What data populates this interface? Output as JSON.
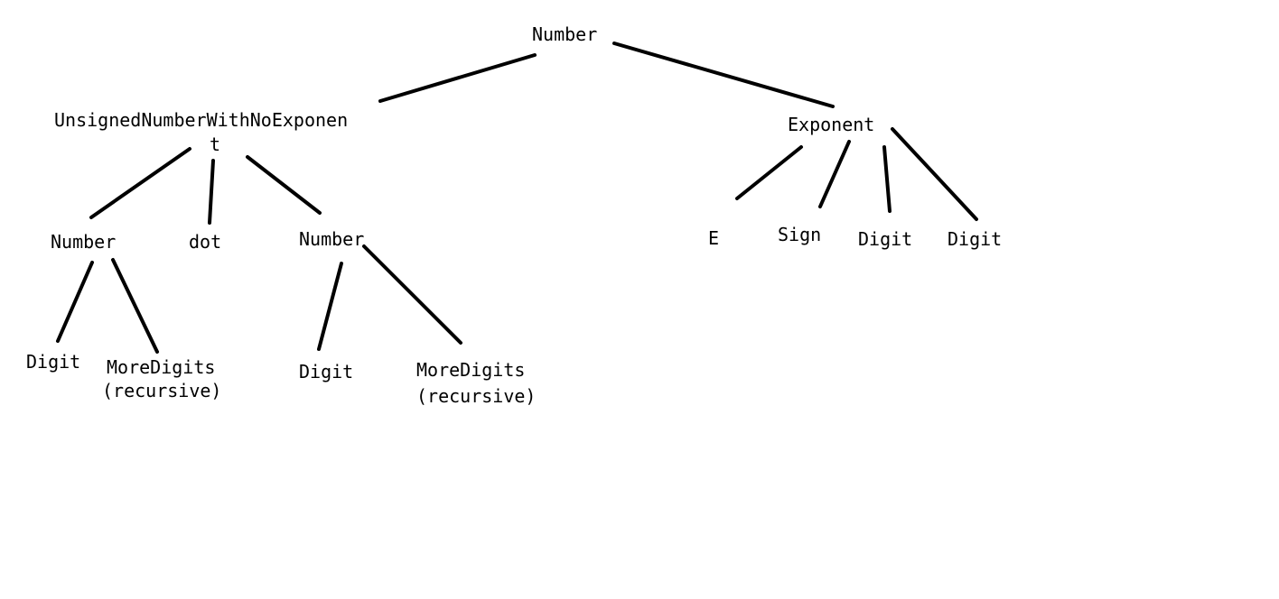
{
  "diagram": {
    "nodes": {
      "root": "Number",
      "unsigned_line1": "UnsignedNumberWithNoExponen",
      "unsigned_line2": "t",
      "exponent": "Exponent",
      "left_number": "Number",
      "dot": "dot",
      "right_number": "Number",
      "left_digit": "Digit",
      "left_moredigits_line1": "MoreDigits",
      "left_moredigits_line2": "(recursive)",
      "right_digit": "Digit",
      "right_moredigits_line1": "MoreDigits",
      "right_moredigits_line2": "(recursive)",
      "e": "E",
      "sign": "Sign",
      "exp_digit_1": "Digit",
      "exp_digit_2": "Digit"
    },
    "colors": {
      "text": "#000000",
      "edge": "#000000",
      "background": "#ffffff"
    }
  }
}
